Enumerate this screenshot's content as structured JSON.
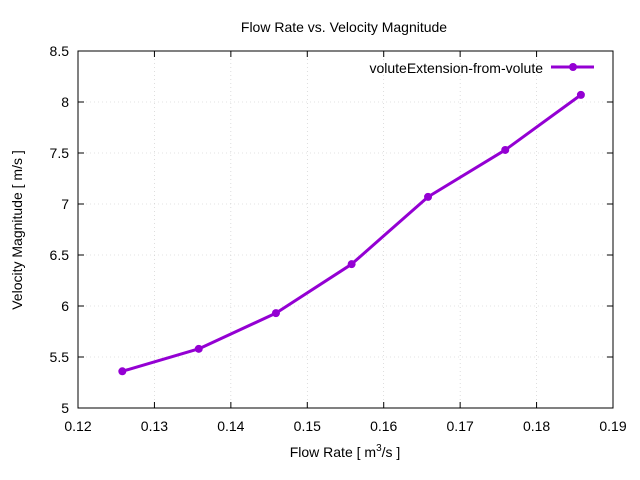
{
  "chart_data": {
    "type": "line",
    "title": "Flow Rate vs. Velocity Magnitude",
    "xlabel_prefix": "Flow Rate [ m",
    "xlabel_sup": "3",
    "xlabel_suffix": "/s ]",
    "ylabel": "Velocity Magnitude [ m/s ]",
    "xlim": [
      0.12,
      0.19
    ],
    "ylim": [
      5,
      8.5
    ],
    "xticks": [
      0.12,
      0.13,
      0.14,
      0.15,
      0.16,
      0.17,
      0.18,
      0.19
    ],
    "xtick_labels": [
      "0.12",
      "0.13",
      "0.14",
      "0.15",
      "0.16",
      "0.17",
      "0.18",
      "0.19"
    ],
    "yticks": [
      5,
      5.5,
      6,
      6.5,
      7,
      7.5,
      8,
      8.5
    ],
    "ytick_labels": [
      "5",
      "5.5",
      "6",
      "6.5",
      "7",
      "7.5",
      "8",
      "8.5"
    ],
    "grid": true,
    "legend_position": "top-right",
    "series": [
      {
        "name": "voluteExtension-from-volute",
        "color": "#9400d3",
        "marker": "circle",
        "x": [
          0.1258,
          0.1358,
          0.1459,
          0.1558,
          0.1658,
          0.1759,
          0.1858
        ],
        "y": [
          5.36,
          5.58,
          5.93,
          6.41,
          7.07,
          7.53,
          8.07
        ]
      }
    ]
  }
}
